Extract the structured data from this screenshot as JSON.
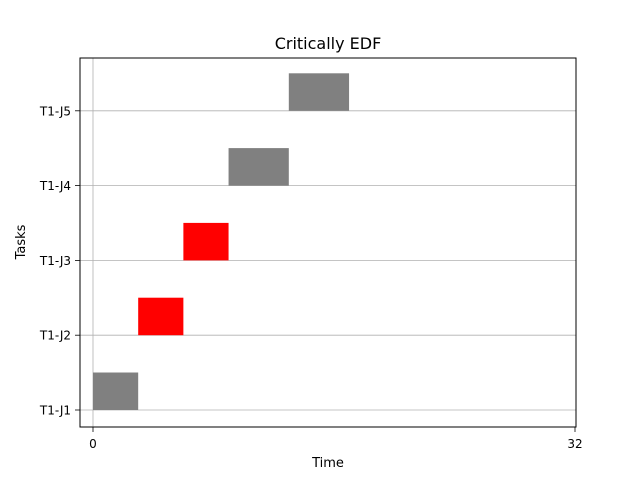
{
  "chart_data": {
    "type": "bar",
    "orientation": "horizontal-gantt",
    "title": "Critically EDF",
    "xlabel": "Time",
    "ylabel": "Tasks",
    "xlim": [
      0,
      32
    ],
    "xticks": [
      0,
      32
    ],
    "grid": "horizontal",
    "categories": [
      "T1-J1",
      "T1-J2",
      "T1-J3",
      "T1-J4",
      "T1-J5"
    ],
    "bars": [
      {
        "task": "T1-J1",
        "start": 0,
        "end": 3,
        "color": "#808080"
      },
      {
        "task": "T1-J2",
        "start": 3,
        "end": 6,
        "color": "#ff0000"
      },
      {
        "task": "T1-J3",
        "start": 6,
        "end": 9,
        "color": "#ff0000"
      },
      {
        "task": "T1-J4",
        "start": 9,
        "end": 13,
        "color": "#808080"
      },
      {
        "task": "T1-J5",
        "start": 13,
        "end": 17,
        "color": "#808080"
      }
    ]
  }
}
